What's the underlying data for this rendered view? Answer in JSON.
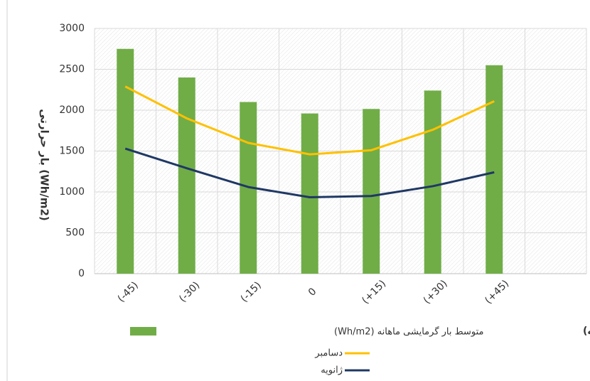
{
  "chart_data": {
    "type": "bar_line",
    "y_axis_label": "بار حرارتی (Wh/m2)",
    "x_axis_label": "اویه سمت فضا (درجه)",
    "categories": [
      "(-45)",
      "(-30)",
      "(-15)",
      "0",
      "(+15)",
      "(+30)",
      "(+45)",
      null
    ],
    "series": [
      {
        "name": "متوسط بار گرمایشی ماهانه (Wh/m2)",
        "type": "bar",
        "color": "#70ad47",
        "values": [
          2750,
          2400,
          2100,
          1960,
          2015,
          2240,
          2550,
          null
        ]
      },
      {
        "name": "دسامبر",
        "type": "line",
        "color": "#ffc000",
        "values": [
          2290,
          1900,
          1600,
          1460,
          1510,
          1760,
          2110,
          null
        ]
      },
      {
        "name": "ژانویه",
        "type": "line",
        "color": "#1f3864",
        "values": [
          1530,
          1290,
          1060,
          935,
          950,
          1070,
          1240,
          null
        ]
      }
    ],
    "ylim": [
      0,
      3000
    ],
    "yticks": [
      0,
      500,
      1000,
      1500,
      2000,
      2500,
      3000
    ],
    "grid": true
  }
}
